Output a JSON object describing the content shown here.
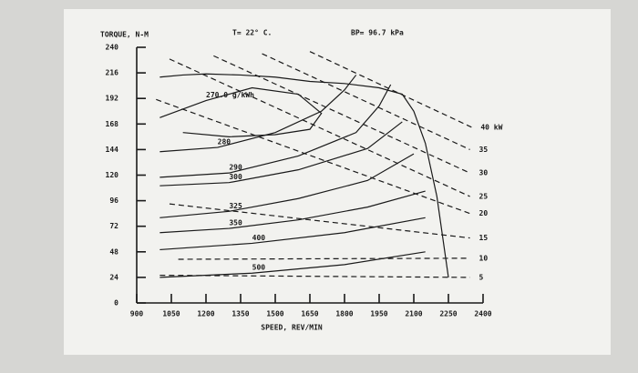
{
  "chart_data": {
    "type": "line",
    "title": "T= 22° C.",
    "subtitle": "BP= 96.7 kPa",
    "y_label": "TORQUE, N-M",
    "x_label": "SPEED, REV/MIN",
    "xlim": [
      900,
      2400
    ],
    "xticks": [
      900,
      1050,
      1200,
      1350,
      1500,
      1650,
      1800,
      1950,
      2100,
      2250,
      2400
    ],
    "ylim": [
      0,
      240
    ],
    "yticks": [
      0,
      24,
      48,
      72,
      96,
      120,
      144,
      168,
      192,
      216,
      240
    ],
    "color": "#1a1a1a",
    "series": [
      {
        "x": [
          1000,
          1100,
          1200,
          1350,
          1500,
          1650,
          1800,
          1950,
          2050,
          2100,
          2150,
          2200,
          2250
        ],
        "values": [
          212,
          214,
          215,
          214,
          212,
          208,
          206,
          202,
          196,
          180,
          150,
          100,
          24
        ],
        "dashed": false
      },
      {
        "name": "270.0 g/kWh",
        "x": [
          1000,
          1200,
          1400,
          1600,
          1700,
          1650,
          1500,
          1300,
          1100
        ],
        "values": [
          174,
          190,
          202,
          196,
          178,
          163,
          158,
          156,
          160
        ],
        "dashed": false
      },
      {
        "name": "280",
        "x": [
          1000,
          1250,
          1500,
          1700,
          1800,
          1850
        ],
        "values": [
          142,
          146,
          160,
          180,
          200,
          214
        ],
        "dashed": false
      },
      {
        "name": "290",
        "x": [
          1000,
          1300,
          1600,
          1850,
          1950,
          2000
        ],
        "values": [
          118,
          122,
          138,
          160,
          185,
          205
        ],
        "dashed": false
      },
      {
        "name": "300",
        "x": [
          1000,
          1300,
          1600,
          1900,
          2050
        ],
        "values": [
          110,
          113,
          125,
          145,
          170
        ],
        "dashed": false
      },
      {
        "name": "325",
        "x": [
          1000,
          1300,
          1600,
          1900,
          2100
        ],
        "values": [
          80,
          86,
          98,
          115,
          140
        ],
        "dashed": false
      },
      {
        "name": "350",
        "x": [
          1000,
          1300,
          1600,
          1900,
          2150
        ],
        "values": [
          66,
          70,
          78,
          90,
          105
        ],
        "dashed": false
      },
      {
        "name": "400",
        "x": [
          1000,
          1400,
          1800,
          2150
        ],
        "values": [
          50,
          56,
          66,
          80
        ],
        "dashed": false
      },
      {
        "name": "500",
        "x": [
          1000,
          1400,
          1800,
          2150
        ],
        "values": [
          24,
          28,
          36,
          48
        ],
        "dashed": false
      },
      {
        "name": "40 kW",
        "x": [
          1650,
          2350
        ],
        "values": [
          236,
          165
        ],
        "dashed": true
      },
      {
        "name": "35",
        "x": [
          1443,
          2343
        ],
        "values": [
          234,
          144
        ],
        "dashed": true
      },
      {
        "name": "30",
        "x": [
          1233,
          2343
        ],
        "values": [
          232,
          122
        ],
        "dashed": true
      },
      {
        "name": "25",
        "x": [
          1042,
          2343
        ],
        "values": [
          229,
          100
        ],
        "dashed": true
      },
      {
        "name": "20",
        "x": [
          984,
          2343
        ],
        "values": [
          191,
          84
        ],
        "dashed": true
      },
      {
        "name": "15",
        "x": [
          1042,
          2343
        ],
        "values": [
          93,
          61
        ],
        "dashed": true
      },
      {
        "name": "10",
        "x": [
          1080,
          2343
        ],
        "values": [
          41,
          42
        ],
        "dashed": true
      },
      {
        "name": "5",
        "x": [
          1000,
          2343
        ],
        "values": [
          26,
          24
        ],
        "dashed": true
      }
    ]
  }
}
